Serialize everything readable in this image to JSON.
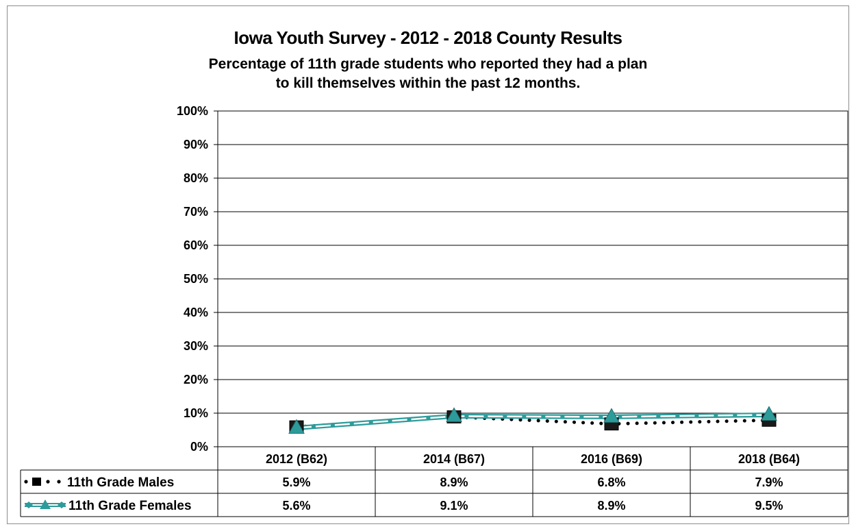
{
  "chart_data": {
    "type": "line",
    "title": "Iowa Youth Survey - 2012 - 2018 County Results",
    "subtitle_line1": "Percentage of 11th grade students who reported they had a plan",
    "subtitle_line2": "to kill themselves within the past 12 months.",
    "categories": [
      "2012 (B62)",
      "2014 (B67)",
      "2016 (B69)",
      "2018 (B64)"
    ],
    "ylim": [
      0,
      100
    ],
    "y_ticks": [
      "0%",
      "10%",
      "20%",
      "30%",
      "40%",
      "50%",
      "60%",
      "70%",
      "80%",
      "90%",
      "100%"
    ],
    "grid": true,
    "series": [
      {
        "name": "11th Grade Males",
        "values": [
          5.9,
          8.9,
          6.8,
          7.9
        ],
        "labels": [
          "5.9%",
          "8.9%",
          "6.8%",
          "7.9%"
        ],
        "color": "#000000",
        "marker": "square",
        "line": "dotted"
      },
      {
        "name": "11th Grade Females",
        "values": [
          5.6,
          9.1,
          8.9,
          9.5
        ],
        "labels": [
          "5.6%",
          "9.1%",
          "8.9%",
          "9.5%"
        ],
        "color": "#2e9b9b",
        "marker": "triangle",
        "line": "double"
      }
    ],
    "legend_placement": "data-table-left"
  }
}
